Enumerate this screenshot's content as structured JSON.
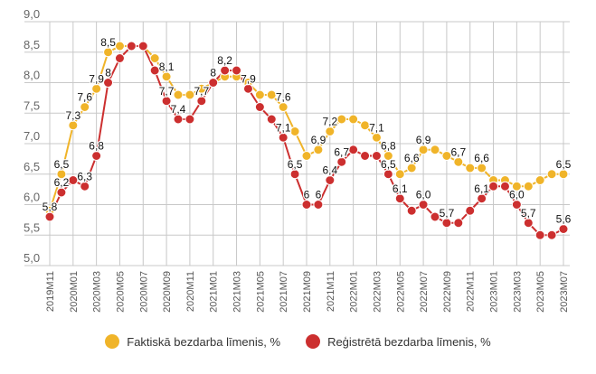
{
  "chart_data": {
    "type": "line",
    "title": "",
    "xlabel": "",
    "ylabel": "",
    "ylim": [
      5.0,
      9.0
    ],
    "yticks": [
      "5,0",
      "5,5",
      "6,0",
      "6,5",
      "7,0",
      "7,5",
      "8,0",
      "8,5",
      "9,0"
    ],
    "grid": true,
    "legend_position": "bottom",
    "x": [
      "2019M11",
      "2019M12",
      "2020M01",
      "2020M02",
      "2020M03",
      "2020M04",
      "2020M05",
      "2020M06",
      "2020M07",
      "2020M08",
      "2020M09",
      "2020M10",
      "2020M11",
      "2020M12",
      "2021M01",
      "2021M02",
      "2021M03",
      "2021M04",
      "2021M05",
      "2021M06",
      "2021M07",
      "2021M08",
      "2021M09",
      "2021M10",
      "2021M11",
      "2021M12",
      "2022M01",
      "2022M02",
      "2022M03",
      "2022M04",
      "2022M05",
      "2022M06",
      "2022M07",
      "2022M08",
      "2022M09",
      "2022M10",
      "2022M11",
      "2022M12",
      "2023M01",
      "2023M02",
      "2023M03",
      "2023M04",
      "2023M05",
      "2023M06",
      "2023M07"
    ],
    "series": [
      {
        "name": "Faktiskā bezdarba līmenis, %",
        "color": "#f0b429",
        "values": [
          5.9,
          6.5,
          7.3,
          7.6,
          7.9,
          8.5,
          8.6,
          8.6,
          8.6,
          8.4,
          8.1,
          7.8,
          7.8,
          7.9,
          8.0,
          8.1,
          8.1,
          8.0,
          7.8,
          7.8,
          7.6,
          7.2,
          6.8,
          6.9,
          7.2,
          7.4,
          7.4,
          7.3,
          7.1,
          6.8,
          6.5,
          6.6,
          6.9,
          6.9,
          6.8,
          6.7,
          6.6,
          6.6,
          6.4,
          6.4,
          6.3,
          6.3,
          6.4,
          6.5,
          6.5
        ],
        "labels": [
          null,
          "6,5",
          "7,3",
          "7,6",
          "7,9",
          "8,5",
          null,
          null,
          null,
          null,
          "8,1",
          null,
          null,
          null,
          null,
          null,
          null,
          null,
          null,
          null,
          "7,6",
          null,
          null,
          "6,9",
          "7,2",
          null,
          null,
          null,
          "7,1",
          "6,8",
          null,
          "6,6",
          "6,9",
          null,
          null,
          "6,7",
          null,
          "6,6",
          null,
          null,
          null,
          null,
          null,
          null,
          "6,5"
        ]
      },
      {
        "name": "Reģistrētā bezdarba līmenis, %",
        "color": "#cc2f2f",
        "values": [
          5.8,
          6.2,
          6.4,
          6.3,
          6.8,
          8.0,
          8.4,
          8.6,
          8.6,
          8.2,
          7.7,
          7.4,
          7.4,
          7.7,
          8.0,
          8.2,
          8.2,
          7.9,
          7.6,
          7.4,
          7.1,
          6.5,
          6.0,
          6.0,
          6.4,
          6.7,
          6.9,
          6.8,
          6.8,
          6.5,
          6.1,
          5.9,
          6.0,
          5.8,
          5.7,
          5.7,
          5.9,
          6.1,
          6.3,
          6.3,
          6.0,
          5.7,
          5.5,
          5.5,
          5.6
        ],
        "labels": [
          "5,8",
          "6,2",
          null,
          "6,3",
          "6,8",
          "8",
          null,
          null,
          null,
          null,
          "7,7",
          "7,4",
          null,
          "7,7",
          "8",
          "8,2",
          null,
          "7,9",
          null,
          null,
          "7,1",
          "6,5",
          "6",
          "6",
          "6,4",
          "6,7",
          null,
          null,
          null,
          "6,5",
          "6,1",
          null,
          "6,0",
          null,
          "5,7",
          null,
          null,
          "6,1",
          null,
          null,
          "6,0",
          "5,7",
          null,
          null,
          "5,6"
        ]
      }
    ]
  }
}
